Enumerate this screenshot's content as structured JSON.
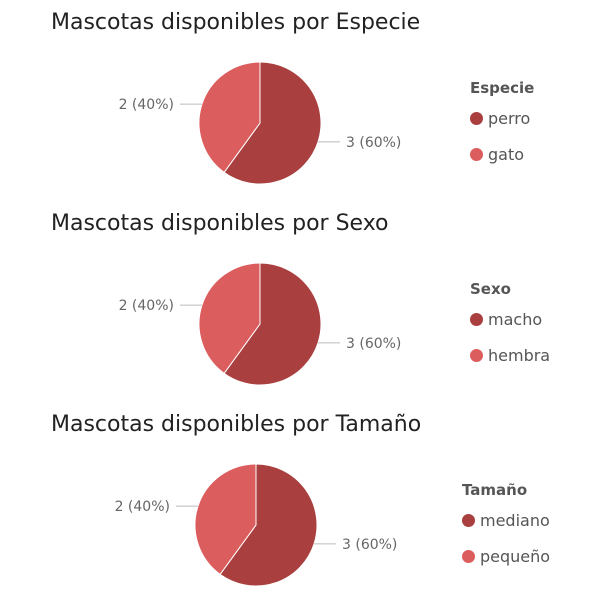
{
  "chart_data": [
    {
      "type": "pie",
      "title": "Mascotas disponibles por Especie",
      "legend_title": "Especie",
      "legend_position": "right",
      "categories": [
        "perro",
        "gato"
      ],
      "values": [
        3,
        2
      ],
      "labels": [
        "3 (60%)",
        "2 (40%)"
      ],
      "colors": [
        "#a93f3f",
        "#dc5d5d"
      ]
    },
    {
      "type": "pie",
      "title": "Mascotas disponibles por Sexo",
      "legend_title": "Sexo",
      "legend_position": "right",
      "categories": [
        "macho",
        "hembra"
      ],
      "values": [
        3,
        2
      ],
      "labels": [
        "3 (60%)",
        "2 (40%)"
      ],
      "colors": [
        "#a93f3f",
        "#dc5d5d"
      ]
    },
    {
      "type": "pie",
      "title": "Mascotas disponibles por Tamaño",
      "legend_title": "Tamaño",
      "legend_position": "right",
      "categories": [
        "mediano",
        "pequeño"
      ],
      "values": [
        3,
        2
      ],
      "labels": [
        "3 (60%)",
        "2 (40%)"
      ],
      "colors": [
        "#a93f3f",
        "#dc5d5d"
      ]
    }
  ]
}
